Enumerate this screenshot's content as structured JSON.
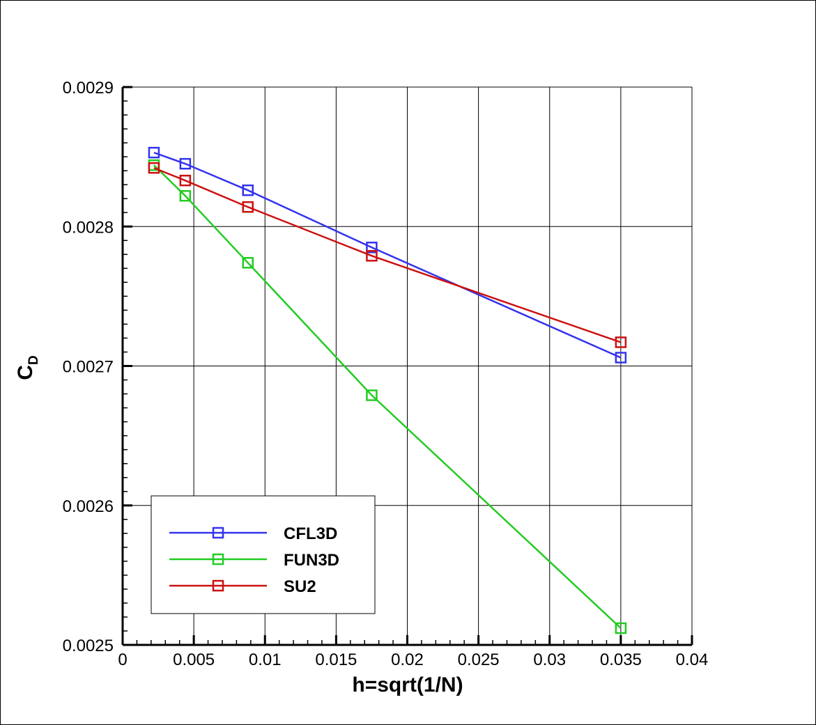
{
  "chart_data": {
    "type": "line",
    "xlabel": "h=sqrt(1/N)",
    "ylabel_main": "C",
    "ylabel_sub": "D",
    "xlim": [
      0,
      0.04
    ],
    "ylim": [
      0.0025,
      0.0029
    ],
    "x_ticks": [
      0,
      0.005,
      0.01,
      0.015,
      0.02,
      0.025,
      0.03,
      0.035,
      0.04
    ],
    "x_tick_labels": [
      "0",
      "0.005",
      "0.01",
      "0.015",
      "0.02",
      "0.025",
      "0.03",
      "0.035",
      "0.04"
    ],
    "y_ticks": [
      0.0025,
      0.0026,
      0.0027,
      0.0028,
      0.0029
    ],
    "y_tick_labels": [
      "0.0025",
      "0.0026",
      "0.0027",
      "0.0028",
      "0.0029"
    ],
    "grid": true,
    "legend_position": "bottom-left",
    "x": [
      0.0022,
      0.0044,
      0.0088,
      0.0175,
      0.035
    ],
    "series": [
      {
        "name": "CFL3D",
        "color": "#3333ee",
        "marker": "square",
        "values": [
          0.002853,
          0.002845,
          0.002826,
          0.002785,
          0.002706
        ]
      },
      {
        "name": "FUN3D",
        "color": "#22cc22",
        "marker": "square",
        "values": [
          0.002844,
          0.002822,
          0.002774,
          0.002679,
          0.002512
        ]
      },
      {
        "name": "SU2",
        "color": "#cc1111",
        "marker": "square",
        "values": [
          0.002842,
          0.002833,
          0.002814,
          0.002779,
          0.002717
        ]
      }
    ]
  }
}
